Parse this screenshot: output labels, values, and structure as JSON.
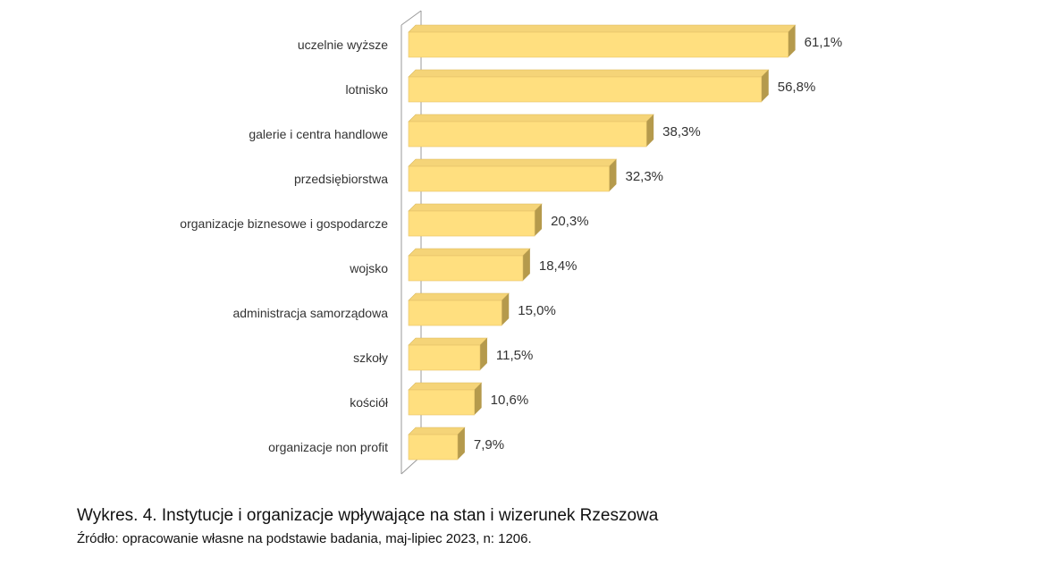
{
  "chart_data": {
    "type": "bar",
    "orientation": "horizontal",
    "style": "3d",
    "categories": [
      "uczelnie wyższe",
      "lotnisko",
      "galerie i centra handlowe",
      "przedsiębiorstwa",
      "organizacje biznesowe i gospodarcze",
      "wojsko",
      "administracja samorządowa",
      "szkoły",
      "kościół",
      "organizacje non profit"
    ],
    "values": [
      61.1,
      56.8,
      38.3,
      32.3,
      20.3,
      18.4,
      15.0,
      11.5,
      10.6,
      7.9
    ],
    "value_labels": [
      "61,1%",
      "56,8%",
      "38,3%",
      "32,3%",
      "20,3%",
      "18,4%",
      "15,0%",
      "11,5%",
      "10,6%",
      "7,9%"
    ],
    "xlim": [
      0,
      70
    ],
    "grid": false,
    "legend": "none",
    "colors": {
      "bar_front": "#ffdf7f",
      "bar_top": "#f5d478",
      "bar_side": "#b59a4c",
      "axis": "#9a9a9a"
    }
  },
  "caption": {
    "title": "Wykres. 4. Instytucje i organizacje wpływające na stan i wizerunek Rzeszowa",
    "source": "Źródło: opracowanie własne na podstawie badania, maj-lipiec 2023, n: 1206."
  }
}
